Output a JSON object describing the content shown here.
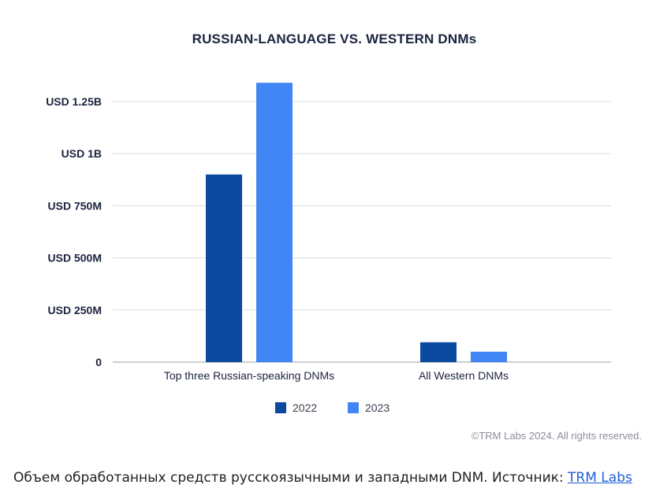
{
  "chart_data": {
    "type": "bar",
    "title": "RUSSIAN-LANGUAGE VS. WESTERN DNMs",
    "categories": [
      "Top three Russian-speaking DNMs",
      "All Western DNMs"
    ],
    "series": [
      {
        "name": "2022",
        "values": [
          900000000,
          95000000
        ],
        "color": "#0b4a9e"
      },
      {
        "name": "2023",
        "values": [
          1340000000,
          50000000
        ],
        "color": "#4285f4"
      }
    ],
    "yticks": [
      {
        "value": 0,
        "label": "0"
      },
      {
        "value": 250000000,
        "label": "USD 250M"
      },
      {
        "value": 500000000,
        "label": "USD 500M"
      },
      {
        "value": 750000000,
        "label": "USD 750M"
      },
      {
        "value": 1000000000,
        "label": "USD 1B"
      },
      {
        "value": 1250000000,
        "label": "USD 1.25B"
      }
    ],
    "ylim": [
      0,
      1250000000
    ],
    "grid": true,
    "legend_position": "bottom-center"
  },
  "copyright": "©TRM Labs 2024. All rights reserved.",
  "caption": {
    "text": "Объем обработанных средств русскоязычными и западными DNM. Источник: ",
    "link_text": "TRM Labs"
  }
}
